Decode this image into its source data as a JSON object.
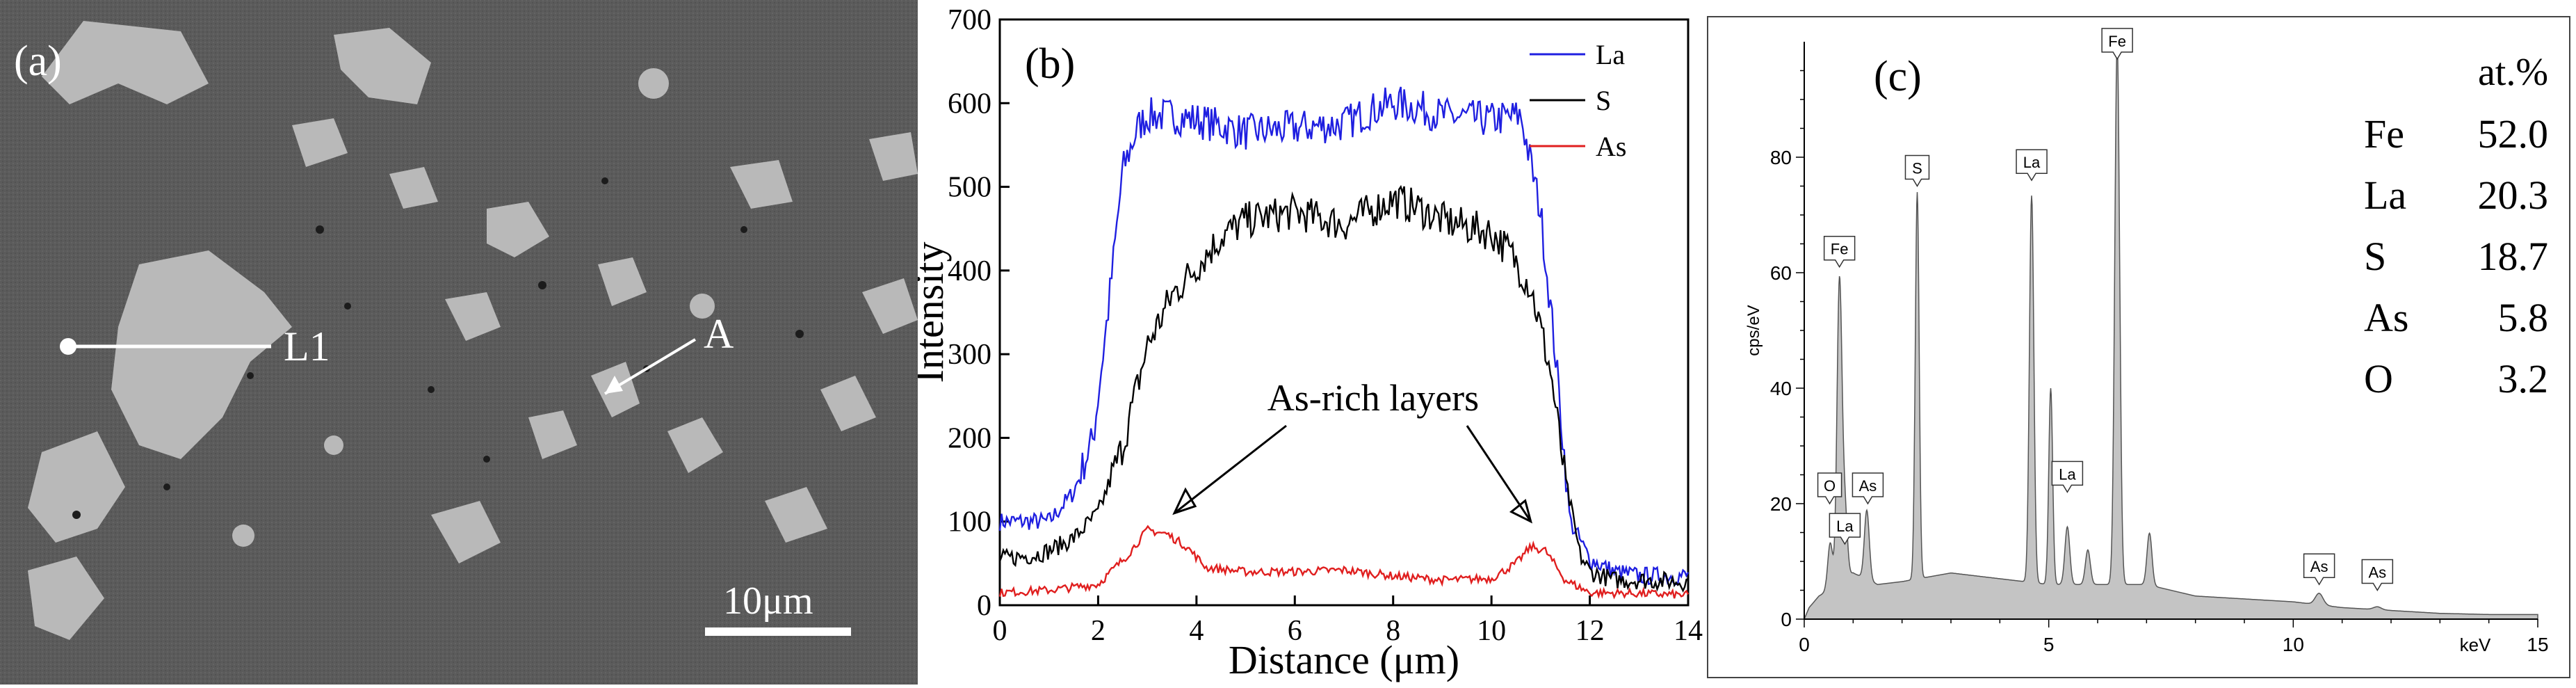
{
  "panel_a": {
    "label": "(a)",
    "line_label": "L1",
    "point_label": "A",
    "scale_text": "10μm"
  },
  "chart_data": [
    {
      "type": "line",
      "label": "(b)",
      "xlabel": "Distance (μm)",
      "ylabel": "Intensity",
      "xlim": [
        0,
        14
      ],
      "ylim": [
        0,
        700
      ],
      "xticks": [
        0,
        2,
        4,
        6,
        8,
        10,
        12,
        14
      ],
      "yticks": [
        0,
        100,
        200,
        300,
        400,
        500,
        600,
        700
      ],
      "legend": "top-right",
      "annotation": "As-rich layers",
      "colors": {
        "La": "#1f1fe0",
        "S": "#000000",
        "As": "#e01f1f"
      },
      "series": [
        {
          "name": "La",
          "x": [
            0,
            0.7,
            1.0,
            1.5,
            1.9,
            2.2,
            2.5,
            2.8,
            3.0,
            3.5,
            4.0,
            5.0,
            6.0,
            7.0,
            7.5,
            8.0,
            8.5,
            9.0,
            10.0,
            10.6,
            11.0,
            11.3,
            11.6,
            12.0,
            12.5,
            13.0,
            14.0
          ],
          "y": [
            100,
            100,
            100,
            135,
            200,
            350,
            520,
            570,
            585,
            585,
            580,
            565,
            570,
            575,
            590,
            600,
            595,
            585,
            580,
            585,
            470,
            300,
            100,
            55,
            40,
            35,
            35
          ]
        },
        {
          "name": "S",
          "x": [
            0,
            0.7,
            1.0,
            1.5,
            2.0,
            2.5,
            3.0,
            3.5,
            4.0,
            4.5,
            5.0,
            6.0,
            7.0,
            8.0,
            8.5,
            9.0,
            10.0,
            10.4,
            10.8,
            11.2,
            11.5,
            11.8,
            12.0,
            12.5,
            13.0,
            14.0
          ],
          "y": [
            55,
            60,
            65,
            80,
            110,
            190,
            310,
            370,
            405,
            440,
            460,
            470,
            455,
            485,
            475,
            460,
            445,
            420,
            380,
            280,
            150,
            60,
            40,
            30,
            30,
            28
          ]
        },
        {
          "name": "As",
          "x": [
            0,
            1.0,
            2.0,
            2.6,
            3.0,
            3.4,
            3.8,
            4.2,
            5.0,
            6.0,
            7.0,
            8.0,
            9.0,
            10.0,
            10.5,
            10.8,
            11.1,
            11.5,
            12.0,
            13.0,
            14.0
          ],
          "y": [
            15,
            18,
            25,
            60,
            90,
            85,
            70,
            45,
            40,
            40,
            42,
            35,
            30,
            32,
            50,
            70,
            65,
            30,
            15,
            14,
            12
          ]
        }
      ]
    },
    {
      "type": "area",
      "label": "(c)",
      "xlabel": "keV",
      "ylabel": "cps/eV",
      "xlim": [
        0,
        15
      ],
      "ylim": [
        0,
        100
      ],
      "xticks": [
        0,
        5,
        10,
        15
      ],
      "yticks": [
        0,
        20,
        40,
        60,
        80
      ],
      "spectrum": {
        "background": [
          [
            0,
            0
          ],
          [
            0.1,
            2
          ],
          [
            0.3,
            4
          ],
          [
            0.5,
            5
          ],
          [
            1.0,
            8
          ],
          [
            1.5,
            6
          ],
          [
            2.0,
            6.5
          ],
          [
            3.0,
            8
          ],
          [
            4.0,
            7
          ],
          [
            5.0,
            6
          ],
          [
            6.0,
            6
          ],
          [
            7.0,
            6
          ],
          [
            8.0,
            4
          ],
          [
            9.0,
            3.5
          ],
          [
            10.0,
            3
          ],
          [
            11.0,
            2
          ],
          [
            12.0,
            1.5
          ],
          [
            13.0,
            1
          ],
          [
            14.0,
            0.8
          ],
          [
            15.0,
            0.8
          ]
        ],
        "peaks": [
          [
            0.53,
            8,
            0.05
          ],
          [
            0.72,
            52,
            0.05
          ],
          [
            0.83,
            12,
            0.05
          ],
          [
            1.28,
            12,
            0.05
          ],
          [
            2.31,
            67,
            0.04
          ],
          [
            4.65,
            67,
            0.045
          ],
          [
            5.04,
            34,
            0.04
          ],
          [
            5.38,
            10,
            0.05
          ],
          [
            5.8,
            6,
            0.05
          ],
          [
            6.4,
            94,
            0.05
          ],
          [
            7.06,
            9,
            0.05
          ],
          [
            10.53,
            2,
            0.08
          ],
          [
            11.72,
            0.5,
            0.08
          ]
        ]
      },
      "peak_labels": [
        {
          "text": "O",
          "x": 0.52,
          "y": 20
        },
        {
          "text": "As",
          "x": 1.3,
          "y": 20
        },
        {
          "text": "La",
          "x": 0.83,
          "y": 13
        },
        {
          "text": "Fe",
          "x": 0.72,
          "y": 61
        },
        {
          "text": "S",
          "x": 2.31,
          "y": 75
        },
        {
          "text": "La",
          "x": 4.65,
          "y": 76
        },
        {
          "text": "La",
          "x": 5.38,
          "y": 22
        },
        {
          "text": "Fe",
          "x": 6.4,
          "y": 97
        },
        {
          "text": "As",
          "x": 10.53,
          "y": 6
        },
        {
          "text": "As",
          "x": 11.72,
          "y": 5
        }
      ],
      "composition": {
        "header": "at.%",
        "rows": [
          {
            "element": "Fe",
            "value": "52.0"
          },
          {
            "element": "La",
            "value": "20.3"
          },
          {
            "element": "S",
            "value": "18.7"
          },
          {
            "element": "As",
            "value": "5.8"
          },
          {
            "element": "O",
            "value": "3.2"
          }
        ]
      }
    }
  ]
}
